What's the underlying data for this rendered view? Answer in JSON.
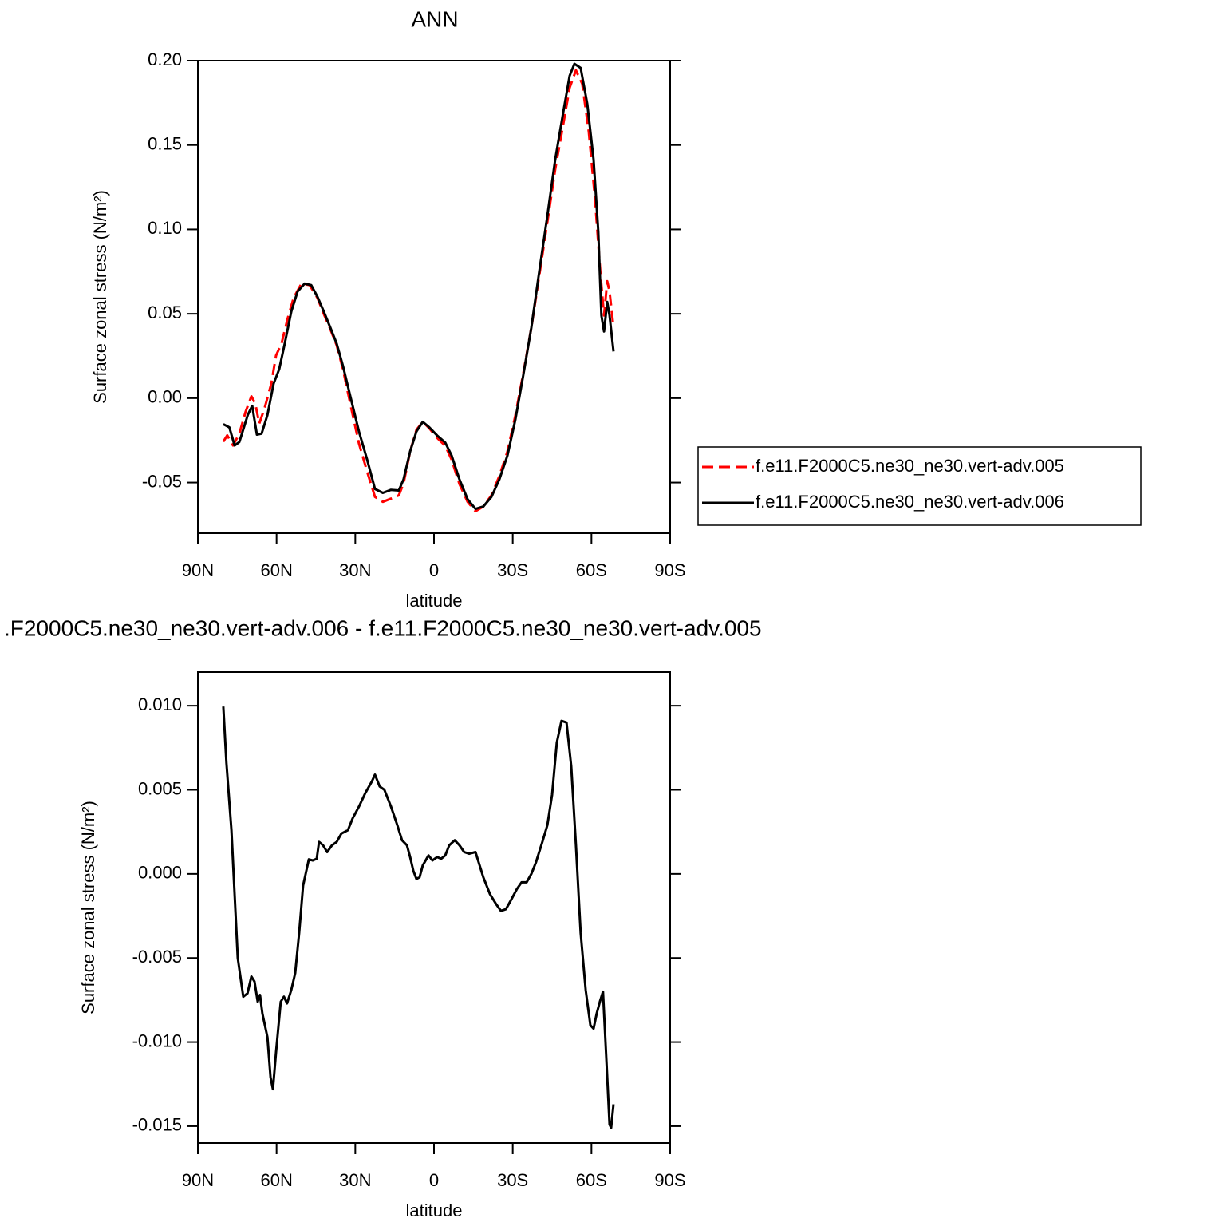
{
  "chart_data": [
    {
      "type": "line",
      "title": "ANN",
      "ylabel": "Surface zonal stress (N/m²)",
      "xlabel": "latitude",
      "xlim": [
        90,
        -90
      ],
      "xticks": [
        {
          "value": 90,
          "label": "90N"
        },
        {
          "value": 60,
          "label": "60N"
        },
        {
          "value": 30,
          "label": "30N"
        },
        0,
        {
          "value": -30,
          "label": "30S"
        },
        {
          "value": -60,
          "label": "60S"
        },
        {
          "value": -90,
          "label": "90S"
        }
      ],
      "ylim": [
        -0.08,
        0.2
      ],
      "yticks": [
        {
          "value": 0.2,
          "label": "0.20"
        },
        0.15,
        {
          "value": 0.1,
          "label": "0.10"
        },
        0.05,
        {
          "value": 0,
          "label": "0.00"
        },
        -0.05
      ],
      "legend": "right",
      "series": [
        {
          "name": "f.e11.F2000C5.ne30_ne30.vert-adv.005",
          "color": "#ff0000",
          "linestyle": "dashed",
          "x": [
            80.3,
            78.8,
            76.6,
            74.2,
            71.8,
            69.6,
            68.1,
            66.6,
            64.5,
            62,
            60.2,
            58.1,
            55.9,
            53.5,
            50.5,
            47.4,
            44.4,
            42,
            39.5,
            37.1,
            34.7,
            31.6,
            28.6,
            25.5,
            22.5,
            19.5,
            16.4,
            13.4,
            11.6,
            9.1,
            6.7,
            4.3,
            1.8,
            -1.2,
            -4.3,
            -6.7,
            -9.7,
            -12.8,
            -15.8,
            -18.8,
            -21.9,
            -24.9,
            -28,
            -31,
            -34,
            -37.1,
            -40.1,
            -43.2,
            -46.2,
            -49.3,
            -51.7,
            -54.1,
            -56.5,
            -59,
            -61.4,
            -63.5,
            -64.8,
            -66,
            -66.9,
            -68.4
          ],
          "values": [
            -0.0258,
            -0.022,
            -0.028,
            -0.021,
            -0.0079,
            0.0011,
            -0.0032,
            -0.015,
            -0.0055,
            0.0087,
            0.0253,
            0.0324,
            0.0466,
            0.0594,
            0.0679,
            0.067,
            0.0594,
            0.0499,
            0.0409,
            0.0314,
            0.0172,
            -0.0055,
            -0.0268,
            -0.0434,
            -0.0585,
            -0.0614,
            -0.0595,
            -0.0576,
            -0.0505,
            -0.0315,
            -0.0188,
            -0.014,
            -0.0178,
            -0.0235,
            -0.0282,
            -0.0363,
            -0.0509,
            -0.0614,
            -0.067,
            -0.0642,
            -0.0576,
            -0.0462,
            -0.0315,
            -0.0102,
            0.0144,
            0.0418,
            0.0726,
            0.1044,
            0.1356,
            0.1626,
            0.1839,
            0.1943,
            0.1863,
            0.1579,
            0.1176,
            0.0726,
            0.049,
            0.0693,
            0.0632,
            0.0418
          ]
        },
        {
          "name": "f.e11.F2000C5.ne30_ne30.vert-adv.006",
          "color": "#000000",
          "linestyle": "solid",
          "x": [
            80.3,
            78,
            76,
            74.2,
            71,
            69.3,
            67.5,
            65.7,
            63.5,
            61.1,
            59,
            56.9,
            54.4,
            52,
            49.3,
            46.8,
            44.4,
            42,
            39.5,
            37.1,
            34.7,
            31.6,
            28.6,
            25.5,
            22.5,
            19.5,
            16.4,
            13.4,
            11.6,
            9.1,
            6.7,
            4.3,
            1.8,
            -1.2,
            -4.3,
            -6.7,
            -9.7,
            -12.8,
            -15.8,
            -18.8,
            -21.9,
            -24.9,
            -28,
            -31,
            -34,
            -37.1,
            -40.1,
            -43.2,
            -46.2,
            -49.3,
            -51.7,
            -53.5,
            -55.9,
            -58.4,
            -60.8,
            -62.6,
            -63.8,
            -64.8,
            -66,
            -66.9,
            -68.4
          ],
          "values": [
            -0.0154,
            -0.0173,
            -0.028,
            -0.026,
            -0.01,
            -0.0045,
            -0.0216,
            -0.021,
            -0.01,
            0.0087,
            0.0172,
            0.0324,
            0.0513,
            0.0632,
            0.0679,
            0.067,
            0.06,
            0.0513,
            0.0418,
            0.0324,
            0.0191,
            -0.0008,
            -0.0197,
            -0.0363,
            -0.0538,
            -0.0561,
            -0.0543,
            -0.0547,
            -0.0481,
            -0.0315,
            -0.0197,
            -0.014,
            -0.0173,
            -0.0221,
            -0.0263,
            -0.0339,
            -0.0481,
            -0.0599,
            -0.0656,
            -0.0642,
            -0.0585,
            -0.0481,
            -0.0339,
            -0.0126,
            0.0134,
            0.0418,
            0.075,
            0.1081,
            0.1413,
            0.1697,
            0.191,
            0.1981,
            0.1957,
            0.1744,
            0.1413,
            0.0987,
            0.049,
            0.0395,
            0.057,
            0.049,
            0.0277
          ]
        }
      ]
    },
    {
      "type": "line",
      "title": ".F2000C5.ne30_ne30.vert-adv.006 - f.e11.F2000C5.ne30_ne30.vert-adv.005",
      "ylabel": "Surface zonal stress (N/m²)",
      "xlabel": "latitude",
      "xlim": [
        90,
        -90
      ],
      "xticks": [
        {
          "value": 90,
          "label": "90N"
        },
        {
          "value": 60,
          "label": "60N"
        },
        {
          "value": 30,
          "label": "30N"
        },
        0,
        {
          "value": -30,
          "label": "30S"
        },
        {
          "value": -60,
          "label": "60S"
        },
        {
          "value": -90,
          "label": "90S"
        }
      ],
      "ylim": [
        -0.016,
        0.012
      ],
      "yticks": [
        {
          "value": 0.01,
          "label": "0.010"
        },
        0.005,
        {
          "value": 0,
          "label": "0.000"
        },
        -0.005,
        {
          "value": -0.01,
          "label": "-0.010"
        },
        -0.015
      ],
      "series": [
        {
          "color": "#000000",
          "linestyle": "solid",
          "x": [
            80.3,
            79.1,
            77.2,
            74.8,
            72.7,
            71.1,
            69.6,
            68.4,
            67.2,
            66.3,
            65.4,
            63.5,
            62.3,
            61.4,
            60.2,
            58.4,
            57.2,
            56,
            54.4,
            52.9,
            51.4,
            49.9,
            47.7,
            46.2,
            44.7,
            43.8,
            42.3,
            40.7,
            38.9,
            37.1,
            35.3,
            32.8,
            31,
            28.6,
            26.2,
            23.7,
            22.5,
            20.7,
            18.9,
            16.4,
            14,
            12.2,
            10.3,
            9.1,
            7.9,
            6.7,
            5.5,
            4.3,
            2.1,
            0.6,
            -1.2,
            -2.7,
            -4.3,
            -5.8,
            -7.9,
            -9.7,
            -11.5,
            -13.4,
            -15.8,
            -17,
            -18.8,
            -21.3,
            -23.7,
            -25.5,
            -27.4,
            -29.2,
            -31.6,
            -33.4,
            -35.3,
            -37.1,
            -38.9,
            -41.3,
            -43.2,
            -45,
            -46.8,
            -48.6,
            -50.5,
            -52.3,
            -54.1,
            -55.9,
            -57.8,
            -59.6,
            -60.8,
            -62,
            -63.2,
            -64.4,
            -65.7,
            -66.9,
            -67.5,
            -68.4
          ],
          "values": [
            0.00995,
            0.0066,
            0.0026,
            -0.005,
            -0.0073,
            -0.0071,
            -0.0061,
            -0.0064,
            -0.0076,
            -0.0072,
            -0.0083,
            -0.0097,
            -0.0121,
            -0.0128,
            -0.0106,
            -0.0076,
            -0.0073,
            -0.0077,
            -0.0069,
            -0.0059,
            -0.0035,
            -0.0007,
            0.00086,
            0.0008,
            0.0009,
            0.0019,
            0.0017,
            0.0013,
            0.0017,
            0.0019,
            0.0024,
            0.0026,
            0.0033,
            0.004,
            0.0048,
            0.0055,
            0.0059,
            0.0052,
            0.005,
            0.004,
            0.0029,
            0.002,
            0.0017,
            0.001,
            0.0002,
            -0.0003,
            -0.0002,
            0.0005,
            0.0011,
            0.0008,
            0.001,
            0.0009,
            0.0011,
            0.0017,
            0.002,
            0.0017,
            0.0013,
            0.0012,
            0.0013,
            0.0007,
            -0.0002,
            -0.0012,
            -0.0018,
            -0.0022,
            -0.0021,
            -0.0016,
            -0.0009,
            -0.0005,
            -0.0005,
            0,
            0.0007,
            0.0019,
            0.0029,
            0.0047,
            0.0078,
            0.0091,
            0.009,
            0.0064,
            0.0017,
            -0.0035,
            -0.0069,
            -0.009,
            -0.0092,
            -0.0083,
            -0.0076,
            -0.007,
            -0.0111,
            -0.0149,
            -0.0151,
            -0.0137
          ]
        }
      ]
    }
  ]
}
